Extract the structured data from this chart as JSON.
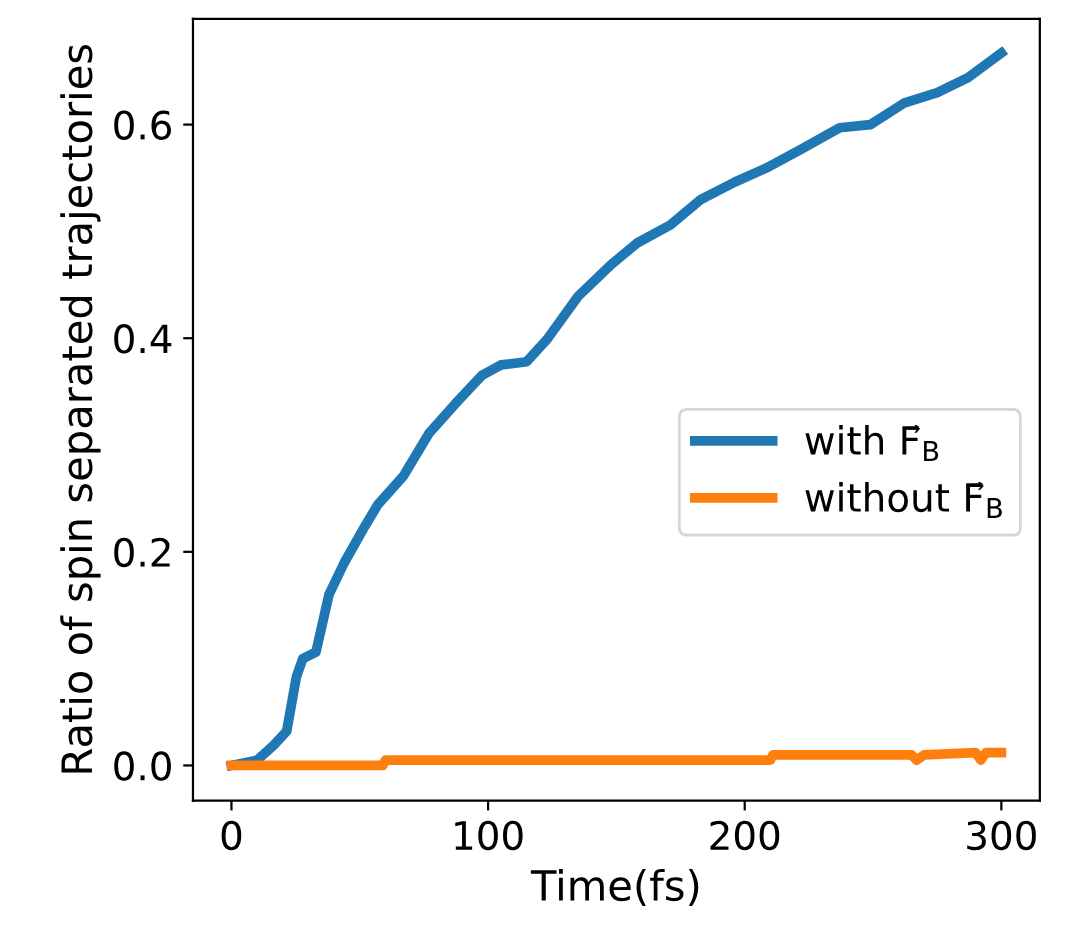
{
  "chart_data": {
    "type": "line",
    "xlabel": "Time(fs)",
    "ylabel": "Ratio of spin separated trajectories",
    "xlim": [
      -15,
      315
    ],
    "ylim": [
      -0.033,
      0.699
    ],
    "xticks": [
      0,
      100,
      200,
      300
    ],
    "yticks": [
      {
        "value": 0,
        "label": "0.0"
      },
      0.2,
      0.4,
      0.6
    ],
    "grid": false,
    "legend": "right",
    "series": [
      {
        "name": "with F⃗$_{B}$",
        "color": "#1f77b4",
        "x": [
          0,
          10,
          16.5,
          21.5,
          25.3,
          27.8,
          32.9,
          38,
          44,
          52,
          57,
          67,
          77,
          87,
          97.5,
          105,
          115,
          123,
          135,
          148,
          158,
          171,
          183,
          196,
          209,
          222,
          237,
          249,
          262,
          275,
          287,
          300
        ],
        "values": [
          0,
          0.005,
          0.019,
          0.032,
          0.083,
          0.1,
          0.106,
          0.16,
          0.19,
          0.224,
          0.244,
          0.271,
          0.311,
          0.338,
          0.365,
          0.375,
          0.378,
          0.399,
          0.439,
          0.469,
          0.489,
          0.506,
          0.53,
          0.546,
          0.56,
          0.577,
          0.597,
          0.6,
          0.62,
          0.63,
          0.644,
          0.667
        ]
      },
      {
        "name": "without F⃗$_{B}$",
        "color": "#ff7f0e",
        "x": [
          0,
          59,
          60,
          210,
          211,
          265,
          267,
          270,
          290,
          292,
          294,
          300
        ],
        "values": [
          0,
          0,
          0.005,
          0.005,
          0.01,
          0.01,
          0.005,
          0.01,
          0.012,
          0.005,
          0.012,
          0.012
        ]
      }
    ]
  }
}
